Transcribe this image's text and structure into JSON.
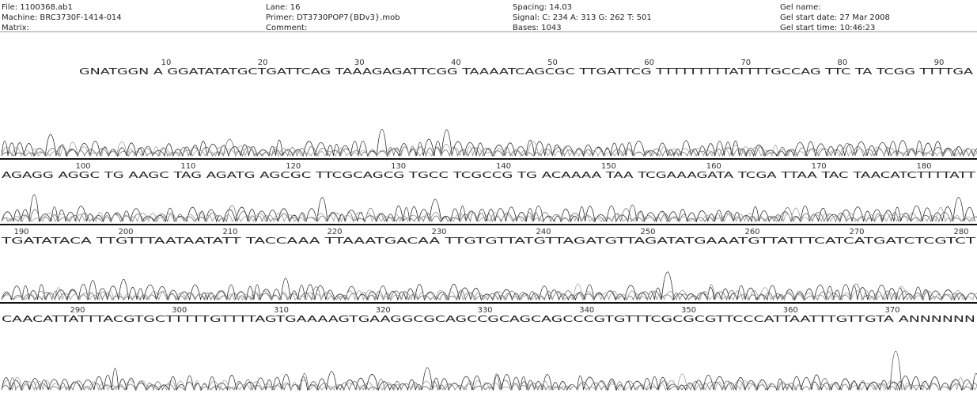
{
  "header": {
    "columns": [
      [
        "File: 1100368.ab1",
        "Machine: BRC3730F-1414-014",
        "Matrix:"
      ],
      [
        "Lane: 16",
        "Primer: DT3730POP7{BDv3}.mob",
        "Comment:"
      ],
      [
        "Spacing: 14.03",
        "Signal:  C: 234  A: 313  G: 262  T: 501",
        "Bases: 1043"
      ],
      [
        "Gel name:",
        "Gel start date: 27 Mar 2008",
        "Gel start time: 10:46:23"
      ]
    ]
  },
  "rows": [
    {
      "positions": [
        "10",
        "20",
        "30",
        "40",
        "50",
        "60",
        "70",
        "80",
        "90"
      ],
      "sequence": "GNATGGN A GGATATATGCTGATTCAG TAAAGAGATTCGG TAAAATCAGCGC TTGATTCG TTTTTTTTTATTTTGCCAG TTC TA TCGG TTTTGA"
    },
    {
      "positions": [
        "100",
        "110",
        "120",
        "130",
        "140",
        "150",
        "160",
        "170",
        "180"
      ],
      "sequence": "AGAGG AGGC TG AAGC TAG AGATG AGCGC TTCGCAGCG TGCC TCGCCG TG ACAAAA TAA TCGAAAGATA TCGA TTAA TAC TAACATCTTTTATT"
    },
    {
      "positions": [
        "190",
        "200",
        "210",
        "220",
        "230",
        "240",
        "250",
        "260",
        "270",
        "280"
      ],
      "sequence": "TGATATACA TTGTTTAATAATATT TACCAAA TTAAATGACAA TTGTGTTATGTTAGATGTTAGATATGAAATGTTATTTCATCATGATCTCGTCT"
    },
    {
      "positions": [
        "290",
        "300",
        "310",
        "320",
        "330",
        "340",
        "350",
        "360",
        "370"
      ],
      "sequence": "CAACATTATTTACGTGCTTTTTGTTTTAGTGAAAAGTGAAGGCGCAGCCGCAGCAGCCCGTGTTTCGCGCGTTCCCATTAATTTGTTGTA ANNNNNN"
    }
  ]
}
